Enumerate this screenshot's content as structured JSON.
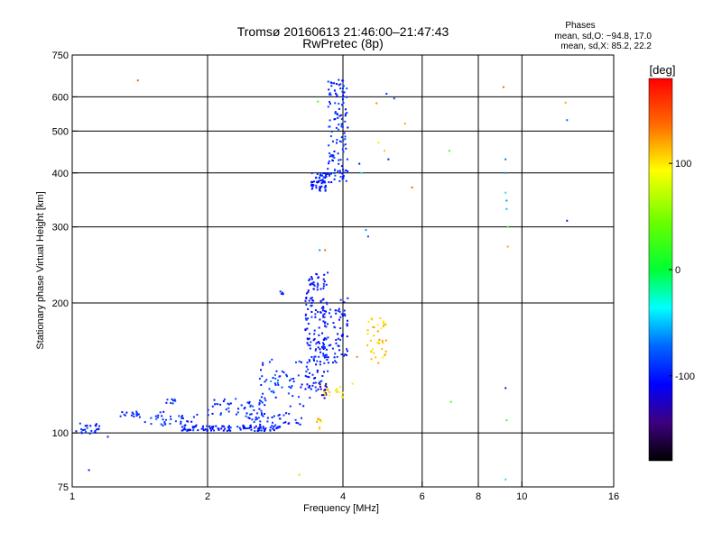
{
  "chart_data": {
    "type": "scatter",
    "title": "Tromsø 20160613 21:46:00–21:47:43",
    "subtitle": "RwPretec (8p)",
    "info": {
      "heading": "Phases",
      "line1": "mean, sd,O: −94.8, 17.0",
      "line2": "mean, sd,X:  85.2, 22.2"
    },
    "xlabel": "Frequency [MHz]",
    "ylabel": "Stationary phase Virtual Height [km]",
    "x_scale": "log",
    "y_scale": "log",
    "xlim": [
      1,
      16
    ],
    "ylim": [
      75,
      750
    ],
    "x_ticks": [
      1,
      2,
      4,
      6,
      8,
      10,
      16
    ],
    "y_ticks": [
      75,
      100,
      200,
      300,
      400,
      500,
      600,
      750
    ],
    "x_grid": [
      2,
      4,
      6,
      8,
      10
    ],
    "y_grid": [
      100,
      200,
      300,
      400,
      500,
      600
    ],
    "grid": true,
    "colorbar": {
      "label": "[deg]",
      "min": -180,
      "max": 180,
      "ticks": [
        100,
        0,
        -100
      ]
    },
    "scatter_clusters": [
      {
        "fx": [
          1.02,
          1.15
        ],
        "hy": [
          99,
          106
        ],
        "n": 25,
        "phase": -95
      },
      {
        "fx": [
          1.28,
          1.42
        ],
        "hy": [
          108,
          112
        ],
        "n": 16,
        "phase": -95
      },
      {
        "fx": [
          1.45,
          1.9
        ],
        "hy": [
          104,
          112
        ],
        "n": 35,
        "phase": -95
      },
      {
        "fx": [
          1.6,
          1.7
        ],
        "hy": [
          117,
          120
        ],
        "n": 8,
        "phase": -95
      },
      {
        "fx": [
          1.75,
          2.9
        ],
        "hy": [
          101,
          104
        ],
        "n": 110,
        "phase": -100
      },
      {
        "fx": [
          2.0,
          2.7
        ],
        "hy": [
          110,
          120
        ],
        "n": 45,
        "phase": -95
      },
      {
        "fx": [
          2.4,
          3.3
        ],
        "hy": [
          104,
          112
        ],
        "n": 40,
        "phase": -95
      },
      {
        "fx": [
          2.6,
          3.4
        ],
        "hy": [
          115,
          148
        ],
        "n": 55,
        "phase": -95
      },
      {
        "fx": [
          2.75,
          2.9
        ],
        "hy": [
          128,
          138
        ],
        "n": 6,
        "phase": -70
      },
      {
        "fx": [
          2.85,
          2.95
        ],
        "hy": [
          208,
          213
        ],
        "n": 6,
        "phase": -95
      },
      {
        "fx": [
          3.3,
          3.7
        ],
        "hy": [
          125,
          235
        ],
        "n": 160,
        "phase": -100
      },
      {
        "fx": [
          3.6,
          3.95
        ],
        "hy": [
          145,
          195
        ],
        "n": 50,
        "phase": -95
      },
      {
        "fx": [
          3.9,
          4.1
        ],
        "hy": [
          150,
          205
        ],
        "n": 25,
        "phase": -100
      },
      {
        "fx": [
          3.4,
          3.7
        ],
        "hy": [
          363,
          400
        ],
        "n": 55,
        "phase": -100
      },
      {
        "fx": [
          3.7,
          4.1
        ],
        "hy": [
          380,
          660
        ],
        "n": 130,
        "phase": -95
      },
      {
        "fx": [
          3.55,
          3.7
        ],
        "hy": [
          120,
          130
        ],
        "n": 12,
        "phase": -140
      },
      {
        "fx": [
          3.5,
          3.65
        ],
        "hy": [
          101,
          108
        ],
        "n": 8,
        "phase": 110
      },
      {
        "fx": [
          3.6,
          4.0
        ],
        "hy": [
          120,
          128
        ],
        "n": 14,
        "phase": 100
      },
      {
        "fx": [
          4.5,
          5.0
        ],
        "hy": [
          145,
          185
        ],
        "n": 40,
        "phase": 110
      }
    ],
    "scatter_points": [
      {
        "f": 1.09,
        "h": 82,
        "phase": -95
      },
      {
        "f": 1.4,
        "h": 655,
        "phase": 140
      },
      {
        "f": 1.2,
        "h": 98,
        "phase": -100
      },
      {
        "f": 2.8,
        "h": 125,
        "phase": -60
      },
      {
        "f": 3.2,
        "h": 80,
        "phase": 110
      },
      {
        "f": 3.55,
        "h": 265,
        "phase": -60
      },
      {
        "f": 3.65,
        "h": 265,
        "phase": 140
      },
      {
        "f": 3.52,
        "h": 585,
        "phase": 30
      },
      {
        "f": 3.7,
        "h": 235,
        "phase": -95
      },
      {
        "f": 4.2,
        "h": 130,
        "phase": 100
      },
      {
        "f": 4.3,
        "h": 150,
        "phase": 130
      },
      {
        "f": 4.1,
        "h": 205,
        "phase": -100
      },
      {
        "f": 4.35,
        "h": 420,
        "phase": -100
      },
      {
        "f": 4.4,
        "h": 400,
        "phase": -40
      },
      {
        "f": 4.5,
        "h": 295,
        "phase": -60
      },
      {
        "f": 4.55,
        "h": 285,
        "phase": -80
      },
      {
        "f": 4.75,
        "h": 580,
        "phase": 130
      },
      {
        "f": 4.8,
        "h": 470,
        "phase": 100
      },
      {
        "f": 4.95,
        "h": 450,
        "phase": 110
      },
      {
        "f": 5.0,
        "h": 610,
        "phase": -90
      },
      {
        "f": 5.05,
        "h": 430,
        "phase": -100
      },
      {
        "f": 5.2,
        "h": 595,
        "phase": -80
      },
      {
        "f": 5.5,
        "h": 520,
        "phase": 120
      },
      {
        "f": 5.7,
        "h": 370,
        "phase": 140
      },
      {
        "f": 6.9,
        "h": 450,
        "phase": 40
      },
      {
        "f": 6.95,
        "h": 118,
        "phase": 30
      },
      {
        "f": 9.1,
        "h": 632,
        "phase": 140
      },
      {
        "f": 9.2,
        "h": 430,
        "phase": -70
      },
      {
        "f": 9.2,
        "h": 400,
        "phase": -60
      },
      {
        "f": 9.2,
        "h": 360,
        "phase": -40
      },
      {
        "f": 9.25,
        "h": 345,
        "phase": -60
      },
      {
        "f": 9.25,
        "h": 330,
        "phase": -50
      },
      {
        "f": 9.3,
        "h": 300,
        "phase": 20
      },
      {
        "f": 9.3,
        "h": 270,
        "phase": 120
      },
      {
        "f": 9.2,
        "h": 127,
        "phase": -100
      },
      {
        "f": 9.25,
        "h": 107,
        "phase": 20
      },
      {
        "f": 9.2,
        "h": 78,
        "phase": -40
      },
      {
        "f": 12.5,
        "h": 582,
        "phase": 120
      },
      {
        "f": 12.6,
        "h": 530,
        "phase": -70
      },
      {
        "f": 12.6,
        "h": 310,
        "phase": -100
      }
    ]
  }
}
